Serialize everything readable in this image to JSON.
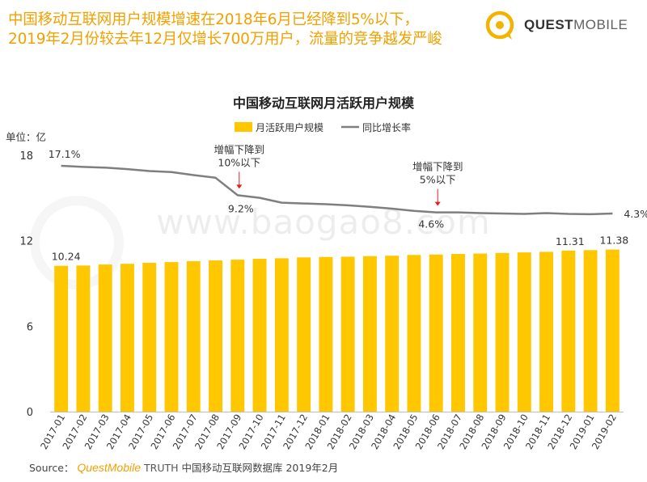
{
  "headline": {
    "line1": "中国移动互联网用户规模增速在2018年6月已经降到5%以下，",
    "line2": "2019年2月份较去年12月仅增长700万用户，流量的竞争越发严峻"
  },
  "brand": {
    "name_bold": "QUEST",
    "name_light": "MOBILE"
  },
  "watermark": "www.baogao8.com",
  "source": {
    "label": "Source：",
    "brand": "QuestMobile",
    "truth": "TRUTH",
    "text": "中国移动互联网数据库 2019年2月"
  },
  "colors": {
    "accent": "#f2a100",
    "bar": "#ffc700",
    "line": "#7f7f7f"
  },
  "chart_data": {
    "type": "bar",
    "title": "中国移动互联网月活跃用户规模",
    "unit_label": "单位：亿",
    "categories": [
      "2017-01",
      "2017-02",
      "2017-03",
      "2017-04",
      "2017-05",
      "2017-06",
      "2017-07",
      "2017-08",
      "2017-09",
      "2017-10",
      "2017-11",
      "2017-12",
      "2018-01",
      "2018-02",
      "2018-03",
      "2018-04",
      "2018-05",
      "2018-06",
      "2018-07",
      "2018-08",
      "2018-09",
      "2018-10",
      "2018-11",
      "2018-12",
      "2019-01",
      "2019-02"
    ],
    "series": [
      {
        "name": "月活跃用户规模",
        "type": "bar",
        "values": [
          10.24,
          10.26,
          10.33,
          10.38,
          10.45,
          10.5,
          10.56,
          10.62,
          10.67,
          10.73,
          10.77,
          10.83,
          10.86,
          10.88,
          10.92,
          10.95,
          11.0,
          11.03,
          11.07,
          11.1,
          11.14,
          11.18,
          11.22,
          11.31,
          11.34,
          11.38
        ]
      },
      {
        "name": "同比增长率",
        "type": "line",
        "unit": "%",
        "values": [
          17.1,
          16.8,
          16.6,
          16.2,
          15.7,
          15.4,
          14.6,
          13.9,
          9.2,
          8.5,
          7.2,
          7.0,
          6.8,
          6.5,
          6.1,
          5.6,
          5.0,
          4.6,
          4.6,
          4.4,
          4.3,
          4.2,
          4.4,
          4.2,
          4.1,
          4.3
        ]
      }
    ],
    "y_ticks": [
      0,
      6,
      12,
      18
    ],
    "ylim": [
      0,
      18
    ],
    "legend_position": "top-center",
    "bar_labels": [
      {
        "index": 0,
        "text": "10.24"
      },
      {
        "index": 23,
        "text": "11.31"
      },
      {
        "index": 25,
        "text": "11.38"
      }
    ],
    "line_labels": [
      {
        "index": 0,
        "text": "17.1%"
      },
      {
        "index": 8,
        "text": "9.2%"
      },
      {
        "index": 17,
        "text": "4.6%"
      },
      {
        "index": 25,
        "text": "4.3%"
      }
    ],
    "annotations": [
      {
        "index": 8,
        "lines": [
          "增幅下降到",
          "10%以下"
        ]
      },
      {
        "index": 17,
        "lines": [
          "增幅下降到",
          "5%以下"
        ]
      }
    ]
  }
}
